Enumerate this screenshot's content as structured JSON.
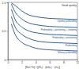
{
  "chart_data": {
    "type": "line",
    "x_label": "[Ref.Th] / [(f/f₀) · (b/b₀) · (t/t₀)]",
    "annotations": [
      "Good quality"
    ],
    "x": [
      0.5,
      1,
      2,
      3,
      4,
      6,
      8,
      10
    ],
    "series": [
      {
        "name": "Without prebending",
        "color": "#1a4f8a",
        "values": [
          0.62,
          0.45,
          0.3,
          0.24,
          0.2,
          0.17,
          0.16,
          0.15
        ]
      },
      {
        "name": "Prebending",
        "color": "#1a4f8a",
        "values": [
          0.75,
          0.58,
          0.44,
          0.37,
          0.33,
          0.3,
          0.29,
          0.28
        ]
      },
      {
        "name": "Prebending + positioning",
        "color": "#1a4f8a",
        "values": [
          0.88,
          0.71,
          0.57,
          0.5,
          0.47,
          0.44,
          0.43,
          0.42
        ]
      },
      {
        "name": "Prebending + positioning + clamping",
        "color": "#1a4f8a",
        "values": [
          0.97,
          0.84,
          0.71,
          0.64,
          0.61,
          0.58,
          0.57,
          0.56
        ]
      },
      {
        "name": "Optimal prebending",
        "color": "#1a4f8a",
        "values": [
          0.99,
          0.95,
          0.85,
          0.78,
          0.75,
          0.72,
          0.71,
          0.7
        ]
      }
    ],
    "xlim": [
      0,
      10
    ],
    "xticks": [
      0,
      2,
      4,
      6,
      8,
      10
    ],
    "ylim": [
      0,
      1
    ],
    "yticks": [
      0,
      0.5,
      {
        "value": 1,
        "label": "1.0"
      }
    ],
    "grid": false
  }
}
